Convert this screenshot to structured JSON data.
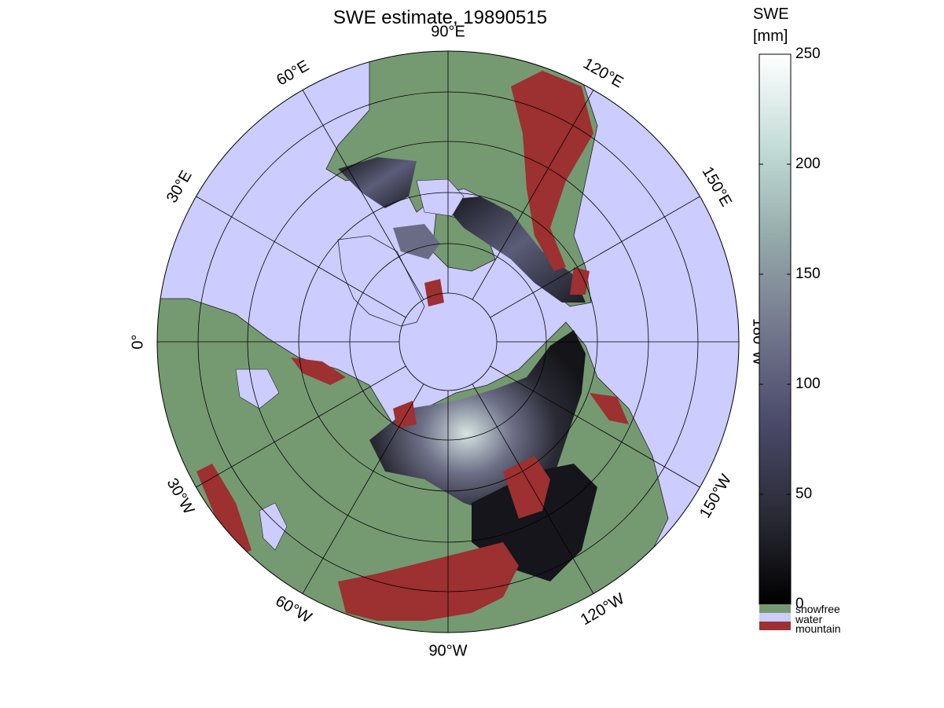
{
  "title": "SWE estimate, 19890515",
  "colorbar": {
    "label_line1": "SWE",
    "label_line2": "[mm]",
    "min": 0,
    "max": 250,
    "ticks": [
      "0",
      "50",
      "100",
      "150",
      "200",
      "250"
    ],
    "gradient": [
      "#000000",
      "#2a2a35",
      "#4a4a6a",
      "#74788d",
      "#93a8a8",
      "#c2dcd7",
      "#ffffff"
    ]
  },
  "legend": [
    {
      "label": "snowfree",
      "color": "#759a72"
    },
    {
      "label": "water",
      "color": "#ccccff"
    },
    {
      "label": "mountain",
      "color": "#9d3030"
    }
  ],
  "map": {
    "projection": "north polar stereographic",
    "ocean_color": "#ccccff",
    "land_color": "#759a72",
    "mountain_color": "#9d3030",
    "snow_dark_color": "#141419",
    "snow_light_color": "#d6e4e2",
    "longitude_labels": [
      {
        "text": "90°W",
        "lon": -90
      },
      {
        "text": "120°W",
        "lon": -120
      },
      {
        "text": "150°W",
        "lon": -150
      },
      {
        "text": "180°W",
        "lon": 180
      },
      {
        "text": "150°E",
        "lon": 150
      },
      {
        "text": "120°E",
        "lon": 120
      },
      {
        "text": "90°E",
        "lon": 90
      },
      {
        "text": "60°E",
        "lon": 60
      },
      {
        "text": "30°E",
        "lon": 30
      },
      {
        "text": "0°",
        "lon": 0
      },
      {
        "text": "30°W",
        "lon": -30
      },
      {
        "text": "60°W",
        "lon": -60
      }
    ]
  }
}
